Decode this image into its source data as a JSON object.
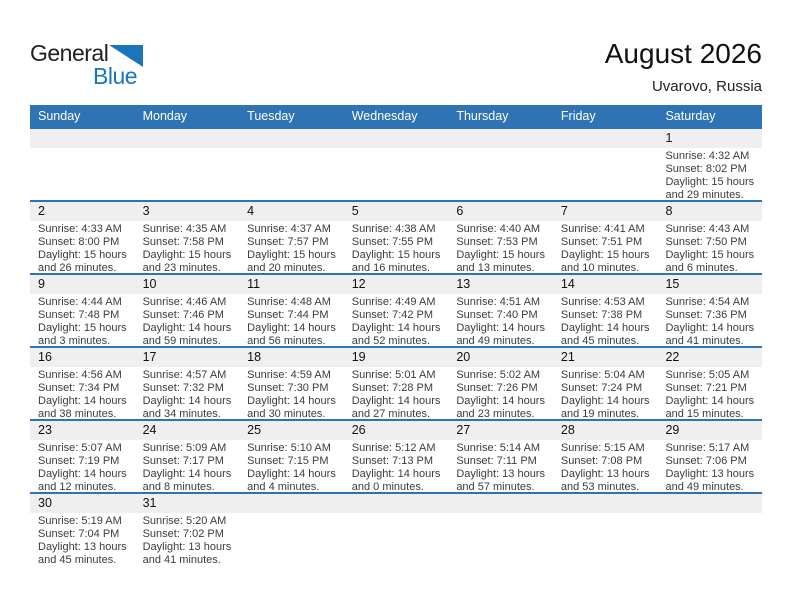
{
  "logo": {
    "part1": "General",
    "part2": "Blue"
  },
  "header": {
    "title": "August 2026",
    "location": "Uvarovo, Russia"
  },
  "colors": {
    "accent_blue": "#2e74b5",
    "logo_blue": "#1b75bc",
    "band_gray": "#efefef"
  },
  "weekday_header": [
    "Sunday",
    "Monday",
    "Tuesday",
    "Wednesday",
    "Thursday",
    "Friday",
    "Saturday"
  ],
  "weeks": [
    [
      null,
      null,
      null,
      null,
      null,
      null,
      {
        "day": "1",
        "sunrise": "Sunrise: 4:32 AM",
        "sunset": "Sunset: 8:02 PM",
        "daylight1": "Daylight: 15 hours",
        "daylight2": "and 29 minutes."
      }
    ],
    [
      {
        "day": "2",
        "sunrise": "Sunrise: 4:33 AM",
        "sunset": "Sunset: 8:00 PM",
        "daylight1": "Daylight: 15 hours",
        "daylight2": "and 26 minutes."
      },
      {
        "day": "3",
        "sunrise": "Sunrise: 4:35 AM",
        "sunset": "Sunset: 7:58 PM",
        "daylight1": "Daylight: 15 hours",
        "daylight2": "and 23 minutes."
      },
      {
        "day": "4",
        "sunrise": "Sunrise: 4:37 AM",
        "sunset": "Sunset: 7:57 PM",
        "daylight1": "Daylight: 15 hours",
        "daylight2": "and 20 minutes."
      },
      {
        "day": "5",
        "sunrise": "Sunrise: 4:38 AM",
        "sunset": "Sunset: 7:55 PM",
        "daylight1": "Daylight: 15 hours",
        "daylight2": "and 16 minutes."
      },
      {
        "day": "6",
        "sunrise": "Sunrise: 4:40 AM",
        "sunset": "Sunset: 7:53 PM",
        "daylight1": "Daylight: 15 hours",
        "daylight2": "and 13 minutes."
      },
      {
        "day": "7",
        "sunrise": "Sunrise: 4:41 AM",
        "sunset": "Sunset: 7:51 PM",
        "daylight1": "Daylight: 15 hours",
        "daylight2": "and 10 minutes."
      },
      {
        "day": "8",
        "sunrise": "Sunrise: 4:43 AM",
        "sunset": "Sunset: 7:50 PM",
        "daylight1": "Daylight: 15 hours",
        "daylight2": "and 6 minutes."
      }
    ],
    [
      {
        "day": "9",
        "sunrise": "Sunrise: 4:44 AM",
        "sunset": "Sunset: 7:48 PM",
        "daylight1": "Daylight: 15 hours",
        "daylight2": "and 3 minutes."
      },
      {
        "day": "10",
        "sunrise": "Sunrise: 4:46 AM",
        "sunset": "Sunset: 7:46 PM",
        "daylight1": "Daylight: 14 hours",
        "daylight2": "and 59 minutes."
      },
      {
        "day": "11",
        "sunrise": "Sunrise: 4:48 AM",
        "sunset": "Sunset: 7:44 PM",
        "daylight1": "Daylight: 14 hours",
        "daylight2": "and 56 minutes."
      },
      {
        "day": "12",
        "sunrise": "Sunrise: 4:49 AM",
        "sunset": "Sunset: 7:42 PM",
        "daylight1": "Daylight: 14 hours",
        "daylight2": "and 52 minutes."
      },
      {
        "day": "13",
        "sunrise": "Sunrise: 4:51 AM",
        "sunset": "Sunset: 7:40 PM",
        "daylight1": "Daylight: 14 hours",
        "daylight2": "and 49 minutes."
      },
      {
        "day": "14",
        "sunrise": "Sunrise: 4:53 AM",
        "sunset": "Sunset: 7:38 PM",
        "daylight1": "Daylight: 14 hours",
        "daylight2": "and 45 minutes."
      },
      {
        "day": "15",
        "sunrise": "Sunrise: 4:54 AM",
        "sunset": "Sunset: 7:36 PM",
        "daylight1": "Daylight: 14 hours",
        "daylight2": "and 41 minutes."
      }
    ],
    [
      {
        "day": "16",
        "sunrise": "Sunrise: 4:56 AM",
        "sunset": "Sunset: 7:34 PM",
        "daylight1": "Daylight: 14 hours",
        "daylight2": "and 38 minutes."
      },
      {
        "day": "17",
        "sunrise": "Sunrise: 4:57 AM",
        "sunset": "Sunset: 7:32 PM",
        "daylight1": "Daylight: 14 hours",
        "daylight2": "and 34 minutes."
      },
      {
        "day": "18",
        "sunrise": "Sunrise: 4:59 AM",
        "sunset": "Sunset: 7:30 PM",
        "daylight1": "Daylight: 14 hours",
        "daylight2": "and 30 minutes."
      },
      {
        "day": "19",
        "sunrise": "Sunrise: 5:01 AM",
        "sunset": "Sunset: 7:28 PM",
        "daylight1": "Daylight: 14 hours",
        "daylight2": "and 27 minutes."
      },
      {
        "day": "20",
        "sunrise": "Sunrise: 5:02 AM",
        "sunset": "Sunset: 7:26 PM",
        "daylight1": "Daylight: 14 hours",
        "daylight2": "and 23 minutes."
      },
      {
        "day": "21",
        "sunrise": "Sunrise: 5:04 AM",
        "sunset": "Sunset: 7:24 PM",
        "daylight1": "Daylight: 14 hours",
        "daylight2": "and 19 minutes."
      },
      {
        "day": "22",
        "sunrise": "Sunrise: 5:05 AM",
        "sunset": "Sunset: 7:21 PM",
        "daylight1": "Daylight: 14 hours",
        "daylight2": "and 15 minutes."
      }
    ],
    [
      {
        "day": "23",
        "sunrise": "Sunrise: 5:07 AM",
        "sunset": "Sunset: 7:19 PM",
        "daylight1": "Daylight: 14 hours",
        "daylight2": "and 12 minutes."
      },
      {
        "day": "24",
        "sunrise": "Sunrise: 5:09 AM",
        "sunset": "Sunset: 7:17 PM",
        "daylight1": "Daylight: 14 hours",
        "daylight2": "and 8 minutes."
      },
      {
        "day": "25",
        "sunrise": "Sunrise: 5:10 AM",
        "sunset": "Sunset: 7:15 PM",
        "daylight1": "Daylight: 14 hours",
        "daylight2": "and 4 minutes."
      },
      {
        "day": "26",
        "sunrise": "Sunrise: 5:12 AM",
        "sunset": "Sunset: 7:13 PM",
        "daylight1": "Daylight: 14 hours",
        "daylight2": "and 0 minutes."
      },
      {
        "day": "27",
        "sunrise": "Sunrise: 5:14 AM",
        "sunset": "Sunset: 7:11 PM",
        "daylight1": "Daylight: 13 hours",
        "daylight2": "and 57 minutes."
      },
      {
        "day": "28",
        "sunrise": "Sunrise: 5:15 AM",
        "sunset": "Sunset: 7:08 PM",
        "daylight1": "Daylight: 13 hours",
        "daylight2": "and 53 minutes."
      },
      {
        "day": "29",
        "sunrise": "Sunrise: 5:17 AM",
        "sunset": "Sunset: 7:06 PM",
        "daylight1": "Daylight: 13 hours",
        "daylight2": "and 49 minutes."
      }
    ],
    [
      {
        "day": "30",
        "sunrise": "Sunrise: 5:19 AM",
        "sunset": "Sunset: 7:04 PM",
        "daylight1": "Daylight: 13 hours",
        "daylight2": "and 45 minutes."
      },
      {
        "day": "31",
        "sunrise": "Sunrise: 5:20 AM",
        "sunset": "Sunset: 7:02 PM",
        "daylight1": "Daylight: 13 hours",
        "daylight2": "and 41 minutes."
      },
      null,
      null,
      null,
      null,
      null
    ]
  ]
}
